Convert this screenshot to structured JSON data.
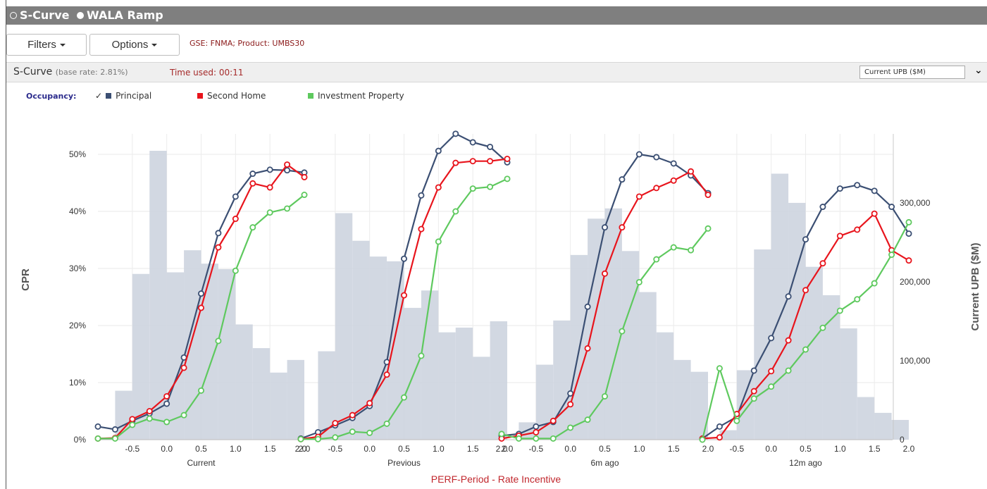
{
  "window": {
    "modes": [
      {
        "label": "S-Curve",
        "selected": false
      },
      {
        "label": "WALA Ramp",
        "selected": true
      }
    ]
  },
  "toolbar": {
    "filters_label": "Filters",
    "options_label": "Options",
    "gse_text": "GSE: FNMA; Product: UMBS30"
  },
  "subheader": {
    "title": "S-Curve",
    "base_rate": "(base rate: 2.81%)",
    "time_used": "Time used: 00:11",
    "metric_select": "Current UPB ($M)"
  },
  "legend": {
    "label": "Occupancy:",
    "items": [
      {
        "label": "Principal",
        "checked": true,
        "color": "#3b4f73"
      },
      {
        "label": "Second Home",
        "checked": false,
        "color": "#e8141c"
      },
      {
        "label": "Investment Property",
        "checked": false,
        "color": "#5ec95e"
      }
    ]
  },
  "chart_data": {
    "type": "line",
    "ylabel": "CPR",
    "y2label": "Current UPB ($M)",
    "xlabel": "PERF-Period - Rate Incentive",
    "ylim": [
      0,
      55
    ],
    "y_ticks": [
      "0%",
      "10%",
      "20%",
      "30%",
      "40%",
      "50%"
    ],
    "y2lim": [
      0,
      366000
    ],
    "y2_ticks": [
      "0",
      "100,000",
      "200,000",
      "300,000"
    ],
    "x_ticks": [
      "-0.5",
      "0.0",
      "0.5",
      "1.0",
      "1.5",
      "2.0"
    ],
    "x_range": [
      -1.0,
      2.0
    ],
    "grid": true,
    "bar_width": 0.25,
    "panels": [
      {
        "name": "Current",
        "first_tick": "",
        "upb_bars": [
          {
            "x": -0.625,
            "value": 62000
          },
          {
            "x": -0.375,
            "value": 210000
          },
          {
            "x": -0.125,
            "value": 366000
          },
          {
            "x": 0.125,
            "value": 212000
          },
          {
            "x": 0.375,
            "value": 240000
          },
          {
            "x": 0.625,
            "value": 223000
          },
          {
            "x": 0.875,
            "value": 216000
          },
          {
            "x": 1.125,
            "value": 146000
          },
          {
            "x": 1.375,
            "value": 116000
          },
          {
            "x": 1.625,
            "value": 85000
          },
          {
            "x": 1.875,
            "value": 101000
          }
        ],
        "series": [
          {
            "name": "Principal",
            "x": [
              -1.0,
              -0.75,
              -0.5,
              -0.25,
              0.0,
              0.25,
              0.5,
              0.75,
              1.0,
              1.25,
              1.5,
              1.75,
              2.0
            ],
            "values": [
              2.3,
              1.8,
              3.3,
              4.6,
              6.3,
              14.4,
              25.6,
              36.2,
              42.6,
              46.6,
              47.3,
              47.2,
              46.8
            ]
          },
          {
            "name": "Second Home",
            "x": [
              -1.0,
              -0.75,
              -0.5,
              -0.25,
              0.0,
              0.25,
              0.5,
              0.75,
              1.0,
              1.25,
              1.5,
              1.75,
              2.0
            ],
            "values": [
              0.2,
              0.3,
              3.6,
              5.0,
              7.6,
              12.6,
              23.1,
              33.7,
              38.7,
              44.9,
              44.2,
              48.2,
              46.0
            ]
          },
          {
            "name": "Investment Property",
            "x": [
              -1.0,
              -0.75,
              -0.5,
              -0.25,
              0.0,
              0.25,
              0.5,
              0.75,
              1.0,
              1.25,
              1.5,
              1.75,
              2.0
            ],
            "values": [
              0.2,
              0.2,
              2.6,
              3.7,
              3.1,
              4.3,
              8.6,
              17.3,
              29.6,
              37.2,
              39.8,
              40.5,
              42.9
            ]
          }
        ]
      },
      {
        "name": "Previous",
        "first_tick": "2.0",
        "upb_bars": [
          {
            "x": -0.625,
            "value": 112000
          },
          {
            "x": -0.375,
            "value": 287000
          },
          {
            "x": -0.125,
            "value": 252000
          },
          {
            "x": 0.125,
            "value": 232000
          },
          {
            "x": 0.375,
            "value": 226000
          },
          {
            "x": 0.625,
            "value": 167000
          },
          {
            "x": 0.875,
            "value": 189000
          },
          {
            "x": 1.125,
            "value": 136000
          },
          {
            "x": 1.375,
            "value": 142000
          },
          {
            "x": 1.625,
            "value": 105000
          },
          {
            "x": 1.875,
            "value": 150000
          }
        ],
        "series": [
          {
            "name": "Principal",
            "x": [
              -1.0,
              -0.75,
              -0.5,
              -0.25,
              0.0,
              0.25,
              0.5,
              0.75,
              1.0,
              1.25,
              1.5,
              1.75,
              2.0
            ],
            "values": [
              0.2,
              1.3,
              2.5,
              3.8,
              5.9,
              13.6,
              31.7,
              42.8,
              50.6,
              53.6,
              52.1,
              51.3,
              48.6
            ]
          },
          {
            "name": "Second Home",
            "x": [
              -1.0,
              -0.75,
              -0.5,
              -0.25,
              0.0,
              0.25,
              0.5,
              0.75,
              1.0,
              1.25,
              1.5,
              1.75,
              2.0
            ],
            "values": [
              0.1,
              0.5,
              2.9,
              4.3,
              6.4,
              11.4,
              25.3,
              36.9,
              44.2,
              48.5,
              48.8,
              48.8,
              49.2
            ]
          },
          {
            "name": "Investment Property",
            "x": [
              -1.0,
              -0.75,
              -0.5,
              -0.25,
              0.0,
              0.25,
              0.5,
              0.75,
              1.0,
              1.25,
              1.5,
              1.75,
              2.0
            ],
            "values": [
              0.1,
              0.1,
              0.4,
              1.4,
              1.2,
              2.8,
              7.4,
              14.7,
              34.7,
              40.0,
              44.0,
              44.3,
              45.7
            ]
          }
        ]
      },
      {
        "name": "6m ago",
        "first_tick": "2.0",
        "upb_bars": [
          {
            "x": -0.625,
            "value": 22000
          },
          {
            "x": -0.375,
            "value": 95000
          },
          {
            "x": -0.125,
            "value": 151000
          },
          {
            "x": 0.125,
            "value": 234000
          },
          {
            "x": 0.375,
            "value": 280000
          },
          {
            "x": 0.625,
            "value": 293000
          },
          {
            "x": 0.875,
            "value": 239000
          },
          {
            "x": 1.125,
            "value": 187000
          },
          {
            "x": 1.375,
            "value": 136000
          },
          {
            "x": 1.625,
            "value": 101000
          },
          {
            "x": 1.875,
            "value": 86000
          }
        ],
        "series": [
          {
            "name": "Principal",
            "x": [
              -1.0,
              -0.75,
              -0.5,
              -0.25,
              0.0,
              0.25,
              0.5,
              0.75,
              1.0,
              1.25,
              1.5,
              1.75,
              2.0
            ],
            "values": [
              0.7,
              1.0,
              2.3,
              3.1,
              8.1,
              23.3,
              37.2,
              45.6,
              50.0,
              49.5,
              48.4,
              46.3,
              43.2
            ]
          },
          {
            "name": "Second Home",
            "x": [
              -1.0,
              -0.75,
              -0.5,
              -0.25,
              0.0,
              0.25,
              0.5,
              0.75,
              1.0,
              1.25,
              1.5,
              1.75,
              2.0
            ],
            "values": [
              0.2,
              0.7,
              1.3,
              3.3,
              6.2,
              16.0,
              29.1,
              37.2,
              42.6,
              44.1,
              45.4,
              47.0,
              42.9
            ]
          },
          {
            "name": "Investment Property",
            "x": [
              -1.0,
              -0.75,
              -0.5,
              -0.25,
              0.0,
              0.25,
              0.5,
              0.75,
              1.0,
              1.25,
              1.5,
              1.75,
              2.0
            ],
            "values": [
              1.0,
              0.2,
              0.2,
              0.2,
              2.1,
              3.5,
              7.6,
              19.0,
              27.6,
              31.6,
              33.7,
              33.2,
              37.0
            ]
          }
        ]
      },
      {
        "name": "12m ago",
        "first_tick": "",
        "upb_bars": [
          {
            "x": -0.625,
            "value": 12000
          },
          {
            "x": -0.375,
            "value": 88000
          },
          {
            "x": -0.125,
            "value": 241000
          },
          {
            "x": 0.125,
            "value": 337000
          },
          {
            "x": 0.375,
            "value": 300000
          },
          {
            "x": 0.625,
            "value": 219000
          },
          {
            "x": 0.875,
            "value": 183000
          },
          {
            "x": 1.125,
            "value": 141000
          },
          {
            "x": 1.375,
            "value": 54000
          },
          {
            "x": 1.625,
            "value": 34000
          },
          {
            "x": 1.875,
            "value": 25000
          }
        ],
        "series": [
          {
            "name": "Principal",
            "x": [
              -1.0,
              -0.75,
              -0.5,
              -0.25,
              0.0,
              0.25,
              0.5,
              0.75,
              1.0,
              1.25,
              1.5,
              1.75,
              2.0
            ],
            "values": [
              0.2,
              2.3,
              4.0,
              12.1,
              17.8,
              25.1,
              35.1,
              40.8,
              44.0,
              44.6,
              43.6,
              40.8,
              36.1
            ]
          },
          {
            "name": "Second Home",
            "x": [
              -1.0,
              -0.75,
              -0.5,
              -0.25,
              0.0,
              0.25,
              0.5,
              0.75,
              1.0,
              1.25,
              1.5,
              1.75,
              2.0
            ],
            "values": [
              0.2,
              0.4,
              4.5,
              8.5,
              12.0,
              17.4,
              26.2,
              30.9,
              35.7,
              36.8,
              39.6,
              33.2,
              31.4
            ]
          },
          {
            "name": "Investment Property",
            "x": [
              -1.0,
              -0.75,
              -0.5,
              -0.25,
              0.0,
              0.25,
              0.5,
              0.75,
              1.0,
              1.25,
              1.5,
              1.75,
              2.0
            ],
            "values": [
              0.0,
              12.5,
              3.3,
              7.2,
              9.3,
              12.1,
              15.8,
              19.6,
              22.6,
              24.6,
              27.4,
              32.4,
              38.1
            ]
          }
        ]
      }
    ]
  }
}
